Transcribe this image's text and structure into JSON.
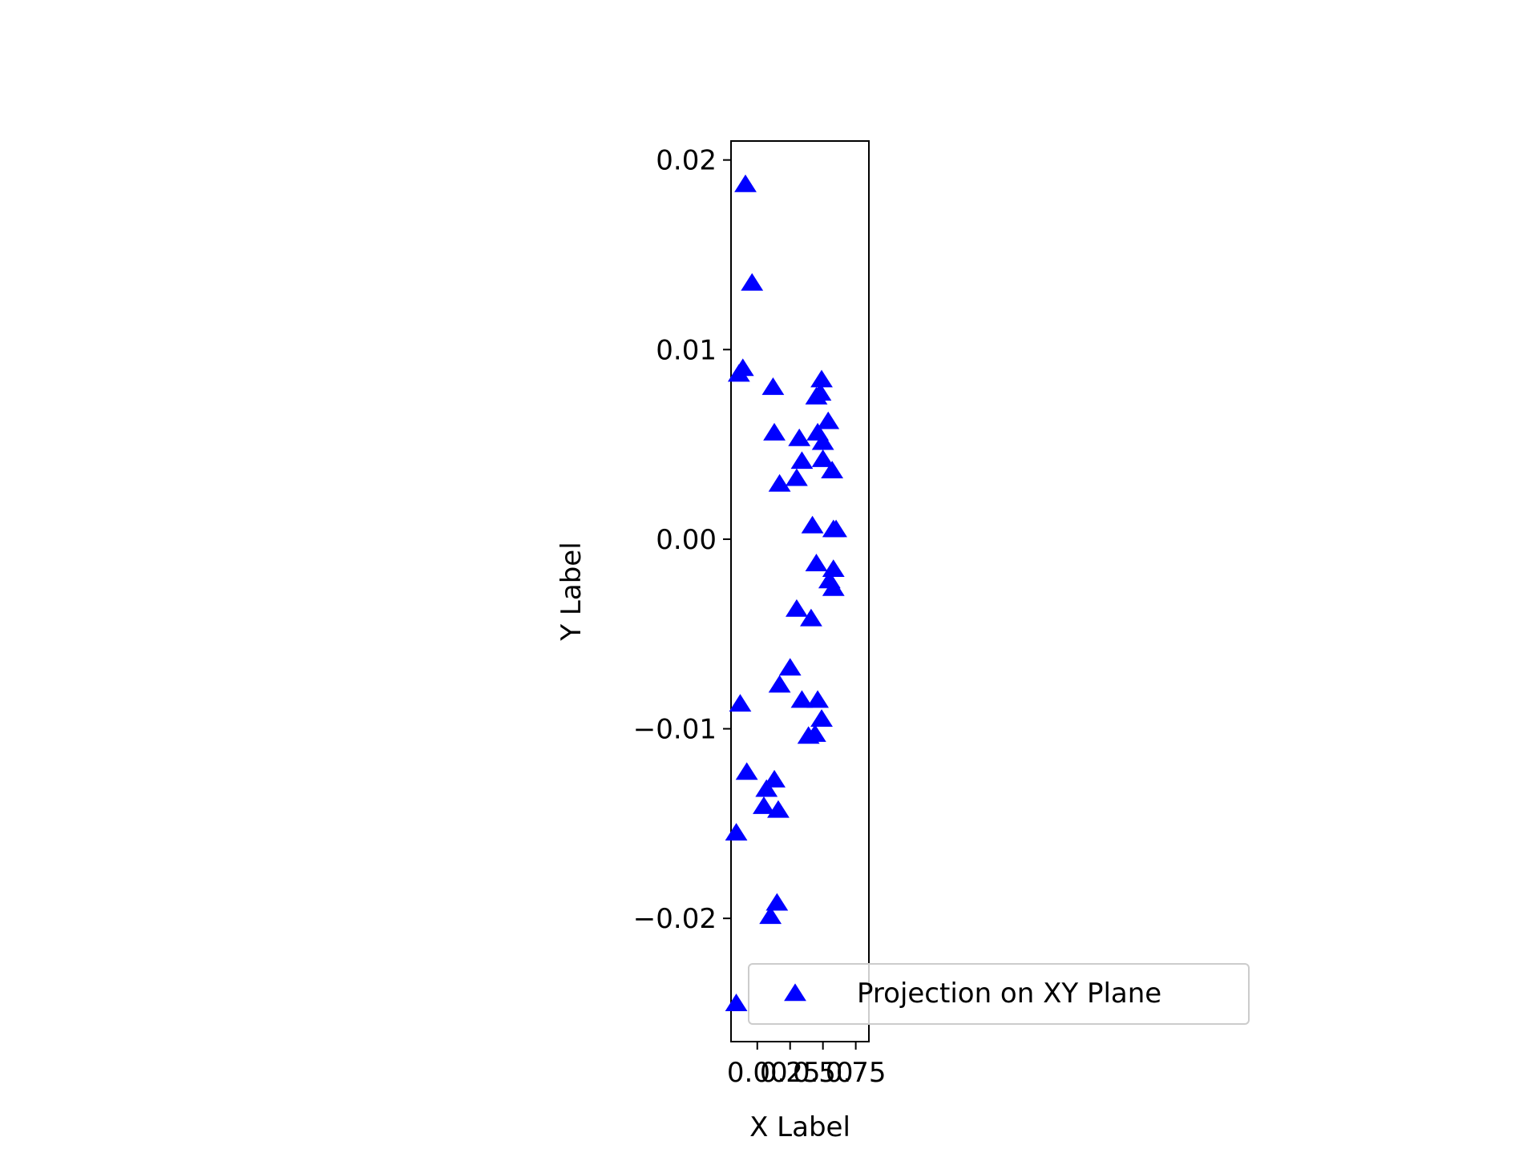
{
  "colors": {
    "marker": "#0000ff",
    "axes": "#000000",
    "background": "#ffffff",
    "legend_border": "#cccccc"
  },
  "chart_data": {
    "type": "scatter",
    "title": "",
    "xlabel": "X Label",
    "ylabel": "Y Label",
    "xlim": [
      -0.0002,
      0.00085
    ],
    "ylim": [
      -0.0265,
      0.021
    ],
    "xticks": [
      0.0,
      0.00025,
      0.0005,
      0.00075
    ],
    "xtick_labels": [
      "0.00",
      "0.25",
      "0.50",
      "0.75"
    ],
    "yticks": [
      -0.02,
      -0.01,
      0.0,
      0.01,
      0.02
    ],
    "ytick_labels": [
      "−0.02",
      "−0.01",
      "0.00",
      "0.01",
      "0.02"
    ],
    "grid": false,
    "legend_position": "lower right",
    "series": [
      {
        "name": "Projection on XY Plane",
        "marker": "triangle-up",
        "color": "#0000ff",
        "points": [
          [
            -0.00016,
            -0.0245
          ],
          [
            -0.00016,
            -0.0155
          ],
          [
            -0.00014,
            0.0087
          ],
          [
            -0.00013,
            -0.0087
          ],
          [
            -0.00011,
            0.009
          ],
          [
            -9e-05,
            0.0187
          ],
          [
            -8e-05,
            -0.0123
          ],
          [
            -4e-05,
            0.0135
          ],
          [
            5e-05,
            -0.0141
          ],
          [
            7e-05,
            -0.0132
          ],
          [
            0.0001,
            -0.0199
          ],
          [
            0.00012,
            0.008
          ],
          [
            0.00013,
            0.0056
          ],
          [
            0.00013,
            -0.0127
          ],
          [
            0.00015,
            -0.0192
          ],
          [
            0.00016,
            -0.0143
          ],
          [
            0.00017,
            0.0029
          ],
          [
            0.00017,
            -0.0077
          ],
          [
            0.00025,
            -0.0068
          ],
          [
            0.0003,
            -0.0037
          ],
          [
            0.0003,
            0.0032
          ],
          [
            0.00032,
            0.0053
          ],
          [
            0.00034,
            0.0041
          ],
          [
            0.00034,
            -0.0085
          ],
          [
            0.00039,
            -0.0104
          ],
          [
            0.00041,
            -0.0042
          ],
          [
            0.00042,
            0.0007
          ],
          [
            0.00044,
            -0.0103
          ],
          [
            0.00045,
            0.0075
          ],
          [
            0.00045,
            -0.0013
          ],
          [
            0.00046,
            0.0056
          ],
          [
            0.00046,
            -0.0085
          ],
          [
            0.00048,
            0.0077
          ],
          [
            0.00049,
            0.0084
          ],
          [
            0.00049,
            -0.0095
          ],
          [
            0.0005,
            0.0051
          ],
          [
            0.0005,
            0.0042
          ],
          [
            0.00054,
            0.0062
          ],
          [
            0.00055,
            -0.0022
          ],
          [
            0.00057,
            0.0036
          ],
          [
            0.00058,
            0.0005
          ],
          [
            0.00058,
            -0.0016
          ],
          [
            0.00058,
            -0.0026
          ],
          [
            0.0006,
            0.0005
          ]
        ]
      }
    ]
  }
}
